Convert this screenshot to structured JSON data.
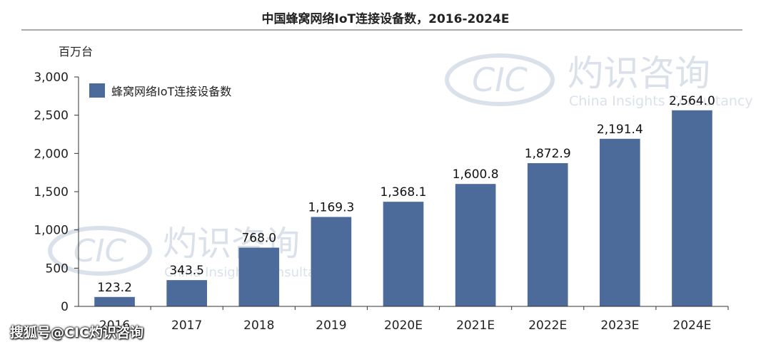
{
  "chart_data": {
    "type": "bar",
    "title": "中国蜂窝网络IoT连接设备数，2016-2024E",
    "ylabel": "百万台",
    "xlabel": "",
    "ylim": [
      0,
      3000
    ],
    "yticks": [
      0,
      500,
      1000,
      1500,
      2000,
      2500,
      3000
    ],
    "ytick_labels": [
      "0",
      "500",
      "1,000",
      "1,500",
      "2,000",
      "2,500",
      "3,000"
    ],
    "categories": [
      "2016",
      "2017",
      "2018",
      "2019",
      "2020E",
      "2021E",
      "2022E",
      "2023E",
      "2024E"
    ],
    "series": [
      {
        "name": "蜂窝网络IoT连接设备数",
        "values": [
          123.2,
          343.5,
          768.0,
          1169.3,
          1368.1,
          1600.8,
          1872.9,
          2191.4,
          2564.0
        ],
        "labels": [
          "123.2",
          "343.5",
          "768.0",
          "1,169.3",
          "1,368.1",
          "1,600.8",
          "1,872.9",
          "2,191.4",
          "2,564.0"
        ],
        "color": "#4c6a9a"
      }
    ],
    "grid": false,
    "legend_position": "top-left"
  },
  "watermark": {
    "logo_text": "CIC",
    "brand_cn": "灼识咨询",
    "brand_en": "China Insights Consultancy"
  },
  "footer": {
    "source_watermark": "搜狐号@CIC灼识咨询"
  }
}
